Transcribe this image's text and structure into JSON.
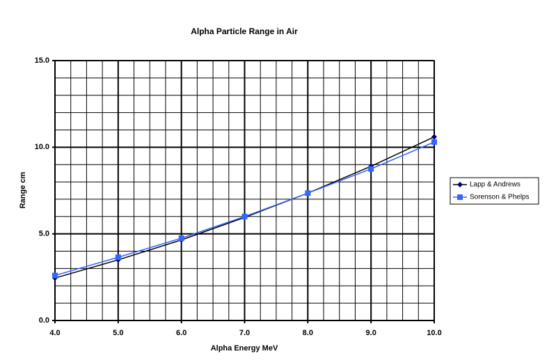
{
  "chart_data": {
    "type": "line",
    "title": "Alpha Particle Range in Air",
    "x_label": "Alpha Energy MeV",
    "y_label": "Range cm",
    "x": [
      4,
      5,
      6,
      7,
      8,
      9,
      10
    ],
    "series": [
      {
        "name": "Lapp & Andrews",
        "color": "#000080",
        "line_color": "#000000",
        "marker": "diamond",
        "values": [
          2.45,
          3.5,
          4.65,
          5.95,
          7.35,
          8.9,
          10.6
        ]
      },
      {
        "name": "Sorenson & Phelps",
        "color": "#3366ff",
        "line_color": "#3366ff",
        "marker": "square",
        "values": [
          2.6,
          3.65,
          4.75,
          6.0,
          7.35,
          8.75,
          10.3
        ]
      }
    ],
    "xlim": [
      4,
      10
    ],
    "ylim": [
      0,
      15
    ],
    "xticks": [
      {
        "value": 4,
        "label": "4.0"
      },
      {
        "value": 5,
        "label": "5.0"
      },
      {
        "value": 6,
        "label": "6.0"
      },
      {
        "value": 7,
        "label": "7.0"
      },
      {
        "value": 8,
        "label": "8.0"
      },
      {
        "value": 9,
        "label": "9.0"
      },
      {
        "value": 10,
        "label": "10.0"
      }
    ],
    "yticks": [
      {
        "value": 0,
        "label": "0.0"
      },
      {
        "value": 5,
        "label": "5.0"
      },
      {
        "value": 10,
        "label": "10.0"
      },
      {
        "value": 15,
        "label": "15.0"
      }
    ],
    "grid": true,
    "legend": "right"
  }
}
